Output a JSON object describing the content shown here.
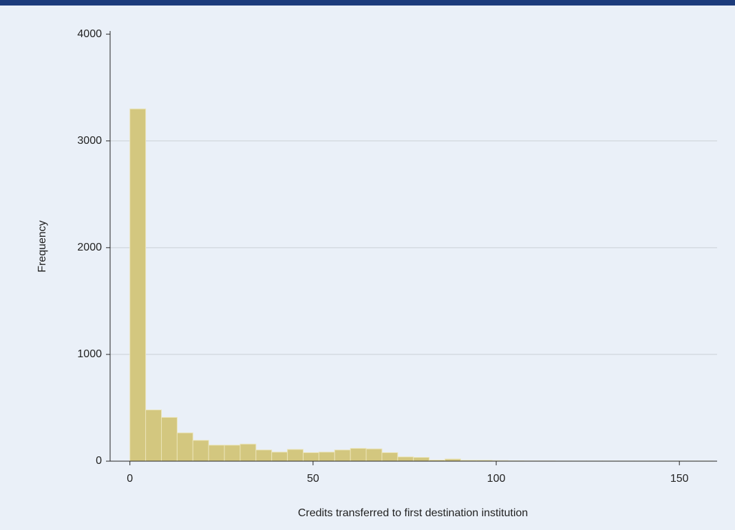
{
  "chart_data": {
    "type": "histogram",
    "x_label": "Credits transferred to first destination institution",
    "y_label": "Frequency",
    "bins": [
      0,
      4.3,
      8.6,
      12.9,
      17.2,
      21.5,
      25.8,
      30.1,
      34.4,
      38.7,
      43,
      47.3,
      51.6,
      55.9,
      60.2,
      64.5,
      68.8,
      73.1,
      77.4,
      81.7,
      86,
      90.3,
      94.6,
      98.9,
      103.2,
      107.5,
      111.8,
      116.1,
      120.4,
      124.7,
      129,
      133.3,
      137.6,
      141.9,
      146.2,
      150.5,
      154.8,
      159.1
    ],
    "values": [
      3300,
      480,
      410,
      265,
      195,
      150,
      150,
      160,
      105,
      85,
      110,
      80,
      85,
      105,
      120,
      115,
      80,
      40,
      35,
      10,
      20,
      8,
      8,
      5,
      3,
      2,
      2,
      1,
      1,
      1,
      1,
      1,
      1,
      1,
      1,
      1,
      1
    ],
    "color": "#d3c77f",
    "xlim": [
      -5.4,
      160.3
    ],
    "ylim": [
      0,
      4030
    ],
    "xticks": [
      0,
      50,
      100,
      150
    ],
    "yticks": [
      0,
      1000,
      2000,
      3000,
      4000
    ],
    "grid": true
  }
}
